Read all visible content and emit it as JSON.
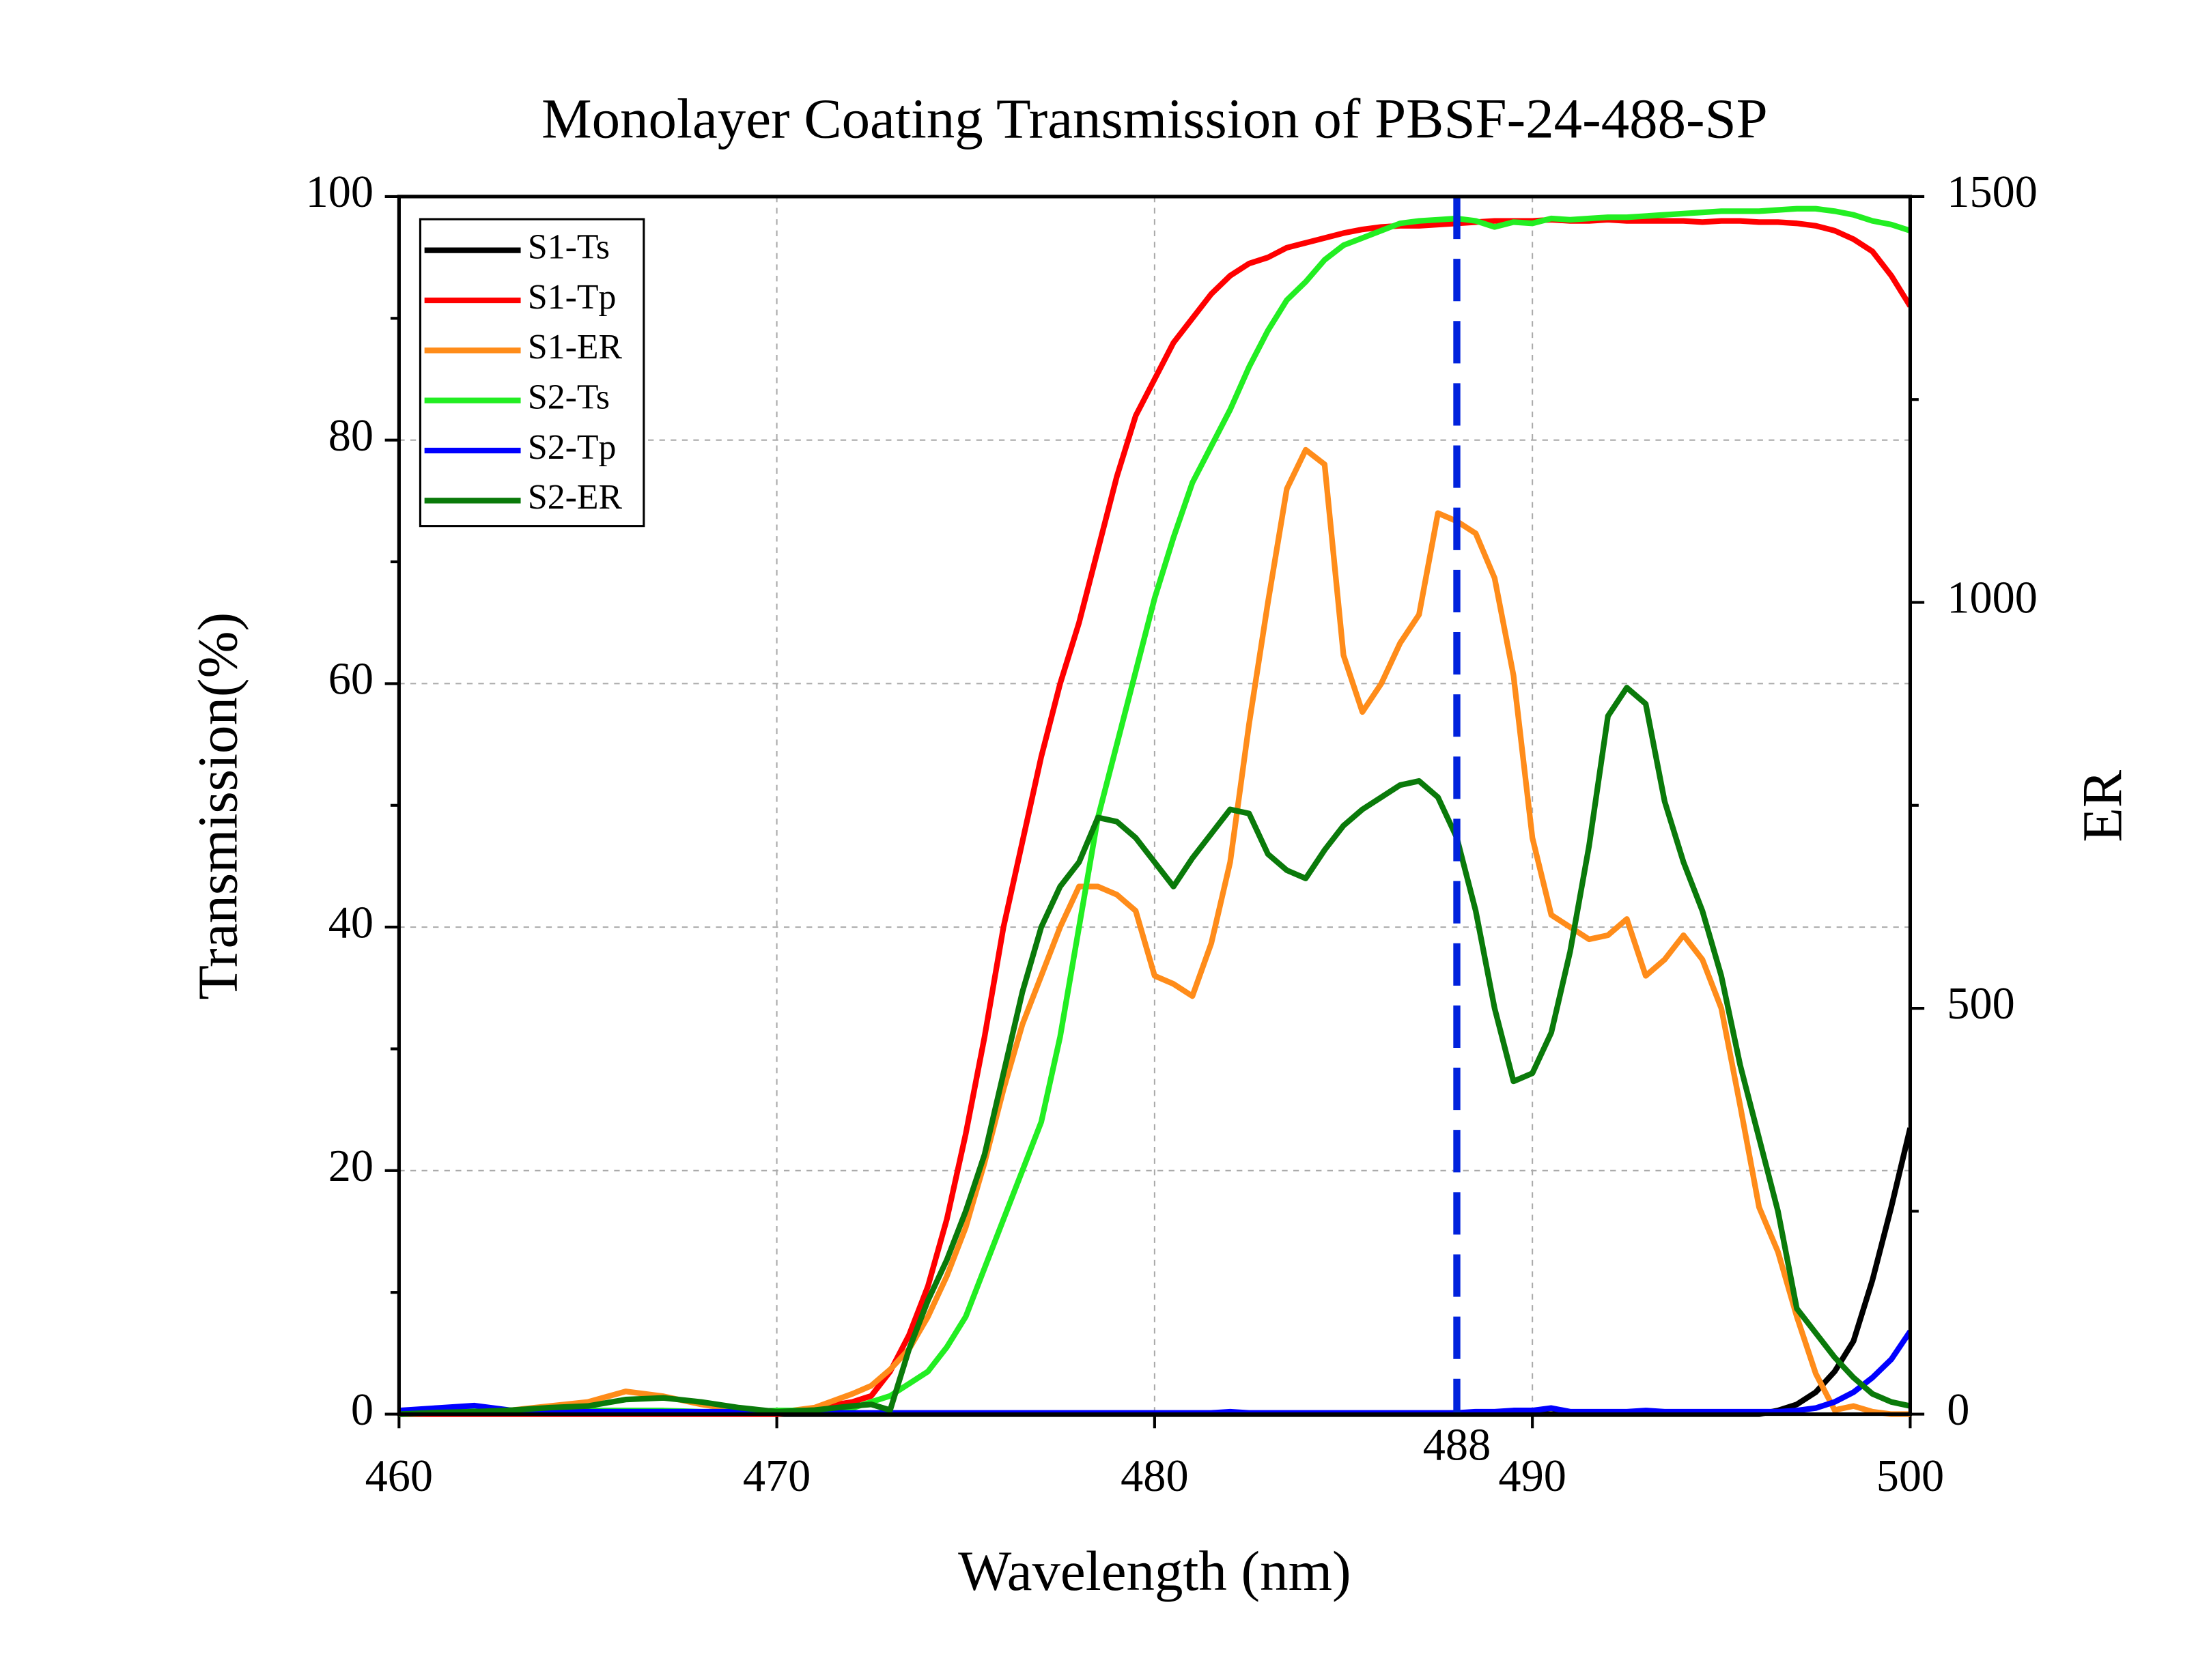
{
  "chart_data": {
    "type": "line",
    "title": "Monolayer Coating Transmission of PBSF-24-488-SP",
    "x_label": "Wavelength (nm)",
    "y_label": "Transmission(%)",
    "y2_label": "ER",
    "xlim": [
      460,
      500
    ],
    "xticks": [
      460,
      470,
      480,
      490,
      500
    ],
    "ylim": [
      0,
      100
    ],
    "yticks": [
      0,
      20,
      40,
      60,
      80,
      100
    ],
    "yminor_ticks": [
      10,
      30,
      50,
      70,
      90
    ],
    "y2lim": [
      0,
      1500
    ],
    "y2ticks": [
      0,
      500,
      1000,
      1500
    ],
    "y2minor_ticks": [
      250,
      750,
      1250
    ],
    "grid": true,
    "legend": "upper left",
    "annotations": [
      {
        "x": 488,
        "label": "488",
        "color": "#0022dd"
      }
    ],
    "x": [
      460,
      461,
      462,
      463,
      464,
      465,
      466,
      467,
      468,
      469,
      470,
      471,
      472,
      472.5,
      473,
      473.5,
      474,
      474.5,
      475,
      475.5,
      476,
      476.5,
      477,
      477.5,
      478,
      478.5,
      479,
      479.5,
      480,
      480.5,
      481,
      481.5,
      482,
      482.5,
      483,
      483.5,
      484,
      484.5,
      485,
      485.5,
      486,
      486.5,
      487,
      487.5,
      488,
      488.5,
      489,
      489.5,
      490,
      490.5,
      491,
      491.5,
      492,
      492.5,
      493,
      493.5,
      494,
      494.5,
      495,
      495.5,
      496,
      496.5,
      497,
      497.5,
      498,
      498.5,
      499,
      499.5,
      500
    ],
    "series": [
      {
        "name": "S1-Ts",
        "color": "#000000",
        "values": [
          0,
          0,
          0,
          0,
          0,
          0,
          0,
          0,
          0,
          0,
          0,
          0,
          0,
          0,
          0,
          0,
          0,
          0,
          0,
          0,
          0,
          0,
          0,
          0,
          0,
          0,
          0,
          0,
          0,
          0,
          0,
          0,
          0,
          0,
          0,
          0,
          0,
          0,
          0,
          0,
          0,
          0,
          0,
          0,
          0,
          0,
          0,
          0,
          0,
          0,
          0,
          0,
          0,
          0,
          0,
          0,
          0,
          0,
          0,
          0,
          0,
          0.3,
          0.8,
          1.8,
          3.5,
          6,
          11,
          17,
          23.5
        ]
      },
      {
        "name": "S1-Tp",
        "color": "#ff0000",
        "values": [
          0,
          0,
          0,
          0,
          0,
          0,
          0,
          0,
          0,
          0,
          0,
          0.5,
          1,
          1.5,
          3.5,
          6.5,
          10.5,
          16,
          23,
          31,
          40,
          47,
          54,
          60,
          65,
          71,
          77,
          82,
          85,
          88,
          90,
          92,
          93.5,
          94.5,
          95,
          95.8,
          96.2,
          96.6,
          97,
          97.3,
          97.5,
          97.6,
          97.6,
          97.7,
          97.8,
          97.9,
          98,
          98,
          98,
          98.1,
          98,
          98,
          98.1,
          98,
          98,
          98,
          98,
          97.9,
          98,
          98,
          97.9,
          97.9,
          97.8,
          97.6,
          97.2,
          96.5,
          95.5,
          93.5,
          91
        ]
      },
      {
        "name": "S1-ER",
        "color": "#ff8c1a",
        "axis": "y2",
        "values": [
          0,
          2,
          3,
          5,
          10,
          15,
          28,
          22,
          12,
          5,
          2,
          8,
          25,
          35,
          55,
          80,
          120,
          170,
          230,
          310,
          400,
          480,
          540,
          600,
          650,
          650,
          640,
          620,
          540,
          530,
          515,
          580,
          680,
          850,
          1000,
          1140,
          1188,
          1170,
          935,
          865,
          900,
          950,
          985,
          1110,
          1100,
          1085,
          1030,
          910,
          710,
          615,
          600,
          585,
          590,
          610,
          540,
          560,
          590,
          560,
          500,
          380,
          255,
          200,
          120,
          50,
          5,
          10,
          3,
          0,
          0
        ]
      },
      {
        "name": "S2-Ts",
        "color": "#22ee22",
        "values": [
          0.3,
          0.2,
          0.3,
          0.2,
          0.3,
          0.3,
          0.3,
          0.3,
          0.2,
          0.2,
          0.3,
          0.3,
          0.5,
          1,
          1.5,
          2.5,
          3.5,
          5.5,
          8,
          12,
          16,
          20,
          24,
          31,
          40,
          49,
          55,
          61,
          67,
          72,
          76.5,
          79.5,
          82.5,
          86,
          89,
          91.5,
          93,
          94.8,
          96,
          96.6,
          97.2,
          97.8,
          98,
          98.1,
          98.2,
          98,
          97.5,
          97.9,
          97.8,
          98.2,
          98.1,
          98.2,
          98.3,
          98.3,
          98.4,
          98.5,
          98.6,
          98.7,
          98.8,
          98.8,
          98.8,
          98.9,
          99,
          99,
          98.8,
          98.5,
          98,
          97.7,
          97.2
        ]
      },
      {
        "name": "S2-Tp",
        "color": "#0000ff",
        "values": [
          0.3,
          0.5,
          0.7,
          0.3,
          0.2,
          0.2,
          0.2,
          0.2,
          0.2,
          0.2,
          0.1,
          0.1,
          0.1,
          0.1,
          0.1,
          0.1,
          0.1,
          0.1,
          0.1,
          0.1,
          0.1,
          0.1,
          0.1,
          0.1,
          0.1,
          0.1,
          0.1,
          0.1,
          0.1,
          0.1,
          0.1,
          0.1,
          0.2,
          0.1,
          0.1,
          0.1,
          0.1,
          0.1,
          0.1,
          0.1,
          0.1,
          0.1,
          0.1,
          0.1,
          0.1,
          0.2,
          0.2,
          0.3,
          0.3,
          0.5,
          0.2,
          0.2,
          0.2,
          0.2,
          0.3,
          0.2,
          0.2,
          0.2,
          0.2,
          0.2,
          0.2,
          0.2,
          0.3,
          0.5,
          1,
          1.8,
          3,
          4.5,
          6.8
        ]
      },
      {
        "name": "S2-ER",
        "color": "#0a7a0a",
        "axis": "y2",
        "values": [
          0,
          2,
          3,
          5,
          8,
          10,
          18,
          20,
          15,
          8,
          3,
          5,
          10,
          12,
          5,
          80,
          140,
          190,
          250,
          320,
          420,
          520,
          600,
          650,
          680,
          735,
          730,
          710,
          680,
          650,
          685,
          715,
          745,
          740,
          690,
          670,
          660,
          695,
          725,
          745,
          760,
          775,
          780,
          760,
          710,
          620,
          500,
          410,
          420,
          470,
          570,
          700,
          860,
          895,
          875,
          755,
          680,
          620,
          540,
          430,
          340,
          250,
          130,
          100,
          70,
          45,
          25,
          15,
          10
        ]
      }
    ]
  }
}
